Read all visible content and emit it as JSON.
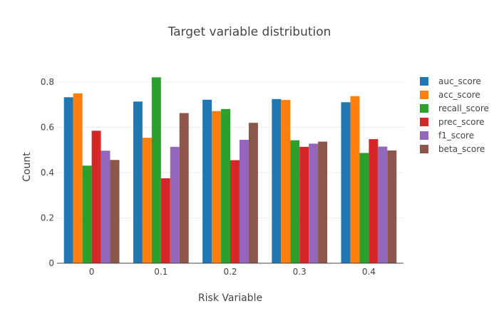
{
  "chart_data": {
    "type": "bar",
    "title": "Target variable distribution",
    "xlabel": "Risk Variable",
    "ylabel": "Count",
    "categories": [
      "0",
      "0.1",
      "0.2",
      "0.3",
      "0.4"
    ],
    "ylim": [
      0,
      0.86
    ],
    "yticks": [
      0,
      0.2,
      0.4,
      0.6,
      0.8
    ],
    "ytick_labels": [
      "0",
      "0.2",
      "0.4",
      "0.6",
      "0.8"
    ],
    "grid": true,
    "legend_position": "right",
    "series": [
      {
        "name": "auc_score",
        "color": "#1f77b4",
        "values": [
          0.733,
          0.714,
          0.722,
          0.725,
          0.711
        ]
      },
      {
        "name": "acc_score",
        "color": "#ff7f0e",
        "values": [
          0.75,
          0.554,
          0.672,
          0.721,
          0.738
        ]
      },
      {
        "name": "recall_score",
        "color": "#2ca02c",
        "values": [
          0.431,
          0.821,
          0.681,
          0.543,
          0.487
        ]
      },
      {
        "name": "prec_score",
        "color": "#d62728",
        "values": [
          0.585,
          0.375,
          0.455,
          0.514,
          0.548
        ]
      },
      {
        "name": "f1_score",
        "color": "#9467bd",
        "values": [
          0.497,
          0.514,
          0.545,
          0.528,
          0.515
        ]
      },
      {
        "name": "beta_score",
        "color": "#8c564b",
        "values": [
          0.456,
          0.663,
          0.62,
          0.537,
          0.498
        ]
      }
    ]
  }
}
